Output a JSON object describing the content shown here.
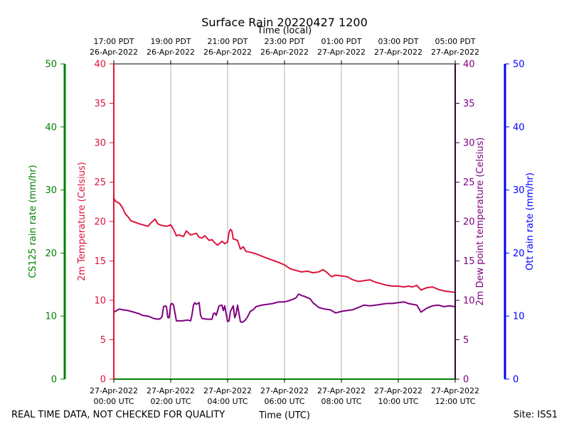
{
  "chart_data": {
    "type": "line",
    "title": "Surface Rain 20220427 1200",
    "top_axis_label": "Time (local)",
    "xlabel": "Time (UTC)",
    "footer_left": "REAL TIME DATA, NOT CHECKED FOR QUALITY",
    "footer_right": "Site: ISS1",
    "x_range_hours": [
      0,
      12
    ],
    "x_ticks_utc": [
      {
        "hour": 0,
        "line1": "27-Apr-2022",
        "line2": "00:00 UTC"
      },
      {
        "hour": 2,
        "line1": "27-Apr-2022",
        "line2": "02:00 UTC"
      },
      {
        "hour": 4,
        "line1": "27-Apr-2022",
        "line2": "04:00 UTC"
      },
      {
        "hour": 6,
        "line1": "27-Apr-2022",
        "line2": "06:00 UTC"
      },
      {
        "hour": 8,
        "line1": "27-Apr-2022",
        "line2": "08:00 UTC"
      },
      {
        "hour": 10,
        "line1": "27-Apr-2022",
        "line2": "10:00 UTC"
      },
      {
        "hour": 12,
        "line1": "27-Apr-2022",
        "line2": "12:00 UTC"
      }
    ],
    "x_ticks_local": [
      {
        "hour": 0,
        "line1": "17:00 PDT",
        "line2": "26-Apr-2022"
      },
      {
        "hour": 2,
        "line1": "19:00 PDT",
        "line2": "26-Apr-2022"
      },
      {
        "hour": 4,
        "line1": "21:00 PDT",
        "line2": "26-Apr-2022"
      },
      {
        "hour": 6,
        "line1": "23:00 PDT",
        "line2": "26-Apr-2022"
      },
      {
        "hour": 8,
        "line1": "01:00 PDT",
        "line2": "27-Apr-2022"
      },
      {
        "hour": 10,
        "line1": "03:00 PDT",
        "line2": "27-Apr-2022"
      },
      {
        "hour": 12,
        "line1": "05:00 PDT",
        "line2": "27-Apr-2022"
      }
    ],
    "axes": {
      "temperature": {
        "label": "2m Temperature (Celsius)",
        "ylim": [
          0,
          40
        ],
        "ticks": [
          0,
          5,
          10,
          15,
          20,
          25,
          30,
          35,
          40
        ],
        "color": "#dc143c"
      },
      "dewpoint": {
        "label": "2m Dew point temperature (Celsius)",
        "ylim": [
          0,
          40
        ],
        "ticks": [
          0,
          5,
          10,
          15,
          20,
          25,
          30,
          35,
          40
        ],
        "color": "#800080"
      },
      "cs125": {
        "label": "CS125 rain rate (mm/hr)",
        "ylim": [
          0,
          50
        ],
        "ticks": [
          0,
          10,
          20,
          30,
          40,
          50
        ],
        "color": "#008000"
      },
      "ott": {
        "label": "Ott rain rate (mm/hr)",
        "ylim": [
          0,
          50
        ],
        "ticks": [
          0,
          10,
          20,
          30,
          40,
          50
        ],
        "color": "#0000ff"
      }
    },
    "series": [
      {
        "name": "2m Temperature",
        "axis": "temperature",
        "color": "#dc143c",
        "x": [
          0,
          0.05,
          0.2,
          0.3,
          0.4,
          0.5,
          0.6,
          0.75,
          0.9,
          1.0,
          1.1,
          1.2,
          1.3,
          1.45,
          1.55,
          1.6,
          1.7,
          1.85,
          1.95,
          2.0,
          2.1,
          2.2,
          2.3,
          2.45,
          2.55,
          2.7,
          2.8,
          2.9,
          3.0,
          3.1,
          3.2,
          3.35,
          3.45,
          3.55,
          3.65,
          3.8,
          3.9,
          4.0,
          4.05,
          4.1,
          4.15,
          4.2,
          4.35,
          4.45,
          4.55,
          4.65,
          4.8,
          5.0,
          5.2,
          5.35,
          5.5,
          5.65,
          5.8,
          6.0,
          6.2,
          6.4,
          6.6,
          6.8,
          7.0,
          7.2,
          7.35,
          7.5,
          7.65,
          7.8,
          8.0,
          8.2,
          8.4,
          8.6,
          8.8,
          9.0,
          9.2,
          9.4,
          9.6,
          9.8,
          10.0,
          10.2,
          10.35,
          10.5,
          10.65,
          10.8,
          11.0,
          11.2,
          11.4,
          11.6,
          11.8,
          12.0
        ],
        "y": [
          23.0,
          22.6,
          22.3,
          21.8,
          21.0,
          20.6,
          20.1,
          19.9,
          19.7,
          19.6,
          19.5,
          19.4,
          19.8,
          20.3,
          19.7,
          19.6,
          19.5,
          19.4,
          19.5,
          19.6,
          19.0,
          18.2,
          18.3,
          18.1,
          18.8,
          18.3,
          18.4,
          18.5,
          18.0,
          17.9,
          18.2,
          17.6,
          17.7,
          17.3,
          17.0,
          17.5,
          17.2,
          17.4,
          18.6,
          19.0,
          18.8,
          17.8,
          17.6,
          16.5,
          16.8,
          16.2,
          16.1,
          15.9,
          15.6,
          15.4,
          15.2,
          15.0,
          14.8,
          14.5,
          14.0,
          13.8,
          13.6,
          13.7,
          13.5,
          13.6,
          13.9,
          13.5,
          13.0,
          13.2,
          13.1,
          13.0,
          12.6,
          12.4,
          12.5,
          12.6,
          12.3,
          12.1,
          11.9,
          11.8,
          11.8,
          11.7,
          11.8,
          11.7,
          11.9,
          11.3,
          11.6,
          11.7,
          11.4,
          11.2,
          11.1,
          11.0
        ]
      },
      {
        "name": "2m Dew point temperature",
        "axis": "dewpoint",
        "color": "#800080",
        "x": [
          0,
          0.1,
          0.2,
          0.3,
          0.5,
          0.7,
          0.9,
          1.0,
          1.2,
          1.4,
          1.55,
          1.65,
          1.7,
          1.75,
          1.8,
          1.85,
          1.9,
          1.95,
          2.0,
          2.05,
          2.1,
          2.2,
          2.4,
          2.6,
          2.7,
          2.75,
          2.8,
          2.85,
          2.9,
          3.0,
          3.05,
          3.1,
          3.3,
          3.45,
          3.5,
          3.55,
          3.6,
          3.7,
          3.8,
          3.85,
          3.9,
          4.0,
          4.05,
          4.1,
          4.2,
          4.25,
          4.3,
          4.35,
          4.45,
          4.5,
          4.55,
          4.6,
          4.7,
          4.8,
          4.9,
          5.0,
          5.2,
          5.4,
          5.6,
          5.8,
          6.0,
          6.2,
          6.4,
          6.5,
          6.6,
          6.7,
          6.9,
          7.0,
          7.2,
          7.4,
          7.6,
          7.8,
          8.0,
          8.2,
          8.4,
          8.6,
          8.8,
          9.0,
          9.2,
          9.4,
          9.6,
          9.8,
          10.0,
          10.2,
          10.35,
          10.5,
          10.65,
          10.8,
          11.0,
          11.2,
          11.4,
          11.6,
          11.8,
          12.0
        ],
        "y": [
          8.5,
          8.7,
          8.9,
          8.8,
          8.7,
          8.5,
          8.3,
          8.1,
          8.0,
          7.7,
          7.6,
          7.7,
          8.0,
          9.2,
          9.3,
          9.2,
          7.8,
          7.8,
          9.5,
          9.6,
          9.4,
          7.4,
          7.4,
          7.5,
          7.4,
          8.2,
          9.4,
          9.7,
          9.5,
          9.7,
          8.1,
          7.7,
          7.6,
          7.6,
          8.3,
          8.4,
          8.1,
          9.3,
          9.4,
          8.7,
          9.3,
          7.3,
          7.4,
          8.6,
          9.3,
          7.8,
          8.3,
          9.4,
          7.3,
          7.2,
          7.3,
          7.4,
          7.9,
          8.6,
          8.8,
          9.2,
          9.4,
          9.5,
          9.6,
          9.8,
          9.8,
          10.0,
          10.3,
          10.8,
          10.6,
          10.5,
          10.2,
          9.7,
          9.1,
          8.9,
          8.8,
          8.4,
          8.6,
          8.7,
          8.8,
          9.1,
          9.4,
          9.3,
          9.4,
          9.5,
          9.6,
          9.6,
          9.7,
          9.8,
          9.6,
          9.5,
          9.4,
          8.5,
          9.0,
          9.3,
          9.4,
          9.2,
          9.3,
          9.2
        ]
      }
    ]
  }
}
